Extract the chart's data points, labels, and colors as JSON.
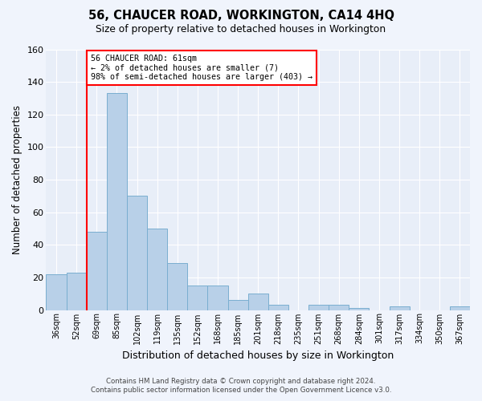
{
  "title": "56, CHAUCER ROAD, WORKINGTON, CA14 4HQ",
  "subtitle": "Size of property relative to detached houses in Workington",
  "xlabel": "Distribution of detached houses by size in Workington",
  "ylabel": "Number of detached properties",
  "bar_color": "#b8d0e8",
  "bar_edge_color": "#7aaed0",
  "background_color": "#e8eef8",
  "grid_color": "#ffffff",
  "categories": [
    "36sqm",
    "52sqm",
    "69sqm",
    "85sqm",
    "102sqm",
    "119sqm",
    "135sqm",
    "152sqm",
    "168sqm",
    "185sqm",
    "201sqm",
    "218sqm",
    "235sqm",
    "251sqm",
    "268sqm",
    "284sqm",
    "301sqm",
    "317sqm",
    "334sqm",
    "350sqm",
    "367sqm"
  ],
  "values": [
    22,
    23,
    48,
    133,
    70,
    50,
    29,
    15,
    15,
    6,
    10,
    3,
    0,
    3,
    3,
    1,
    0,
    2,
    0,
    0,
    2
  ],
  "ylim": [
    0,
    160
  ],
  "yticks": [
    0,
    20,
    40,
    60,
    80,
    100,
    120,
    140,
    160
  ],
  "property_label": "56 CHAUCER ROAD: 61sqm",
  "annotation_line1": "← 2% of detached houses are smaller (7)",
  "annotation_line2": "98% of semi-detached houses are larger (403) →",
  "red_line_bin": 1,
  "footnote1": "Contains HM Land Registry data © Crown copyright and database right 2024.",
  "footnote2": "Contains public sector information licensed under the Open Government Licence v3.0."
}
